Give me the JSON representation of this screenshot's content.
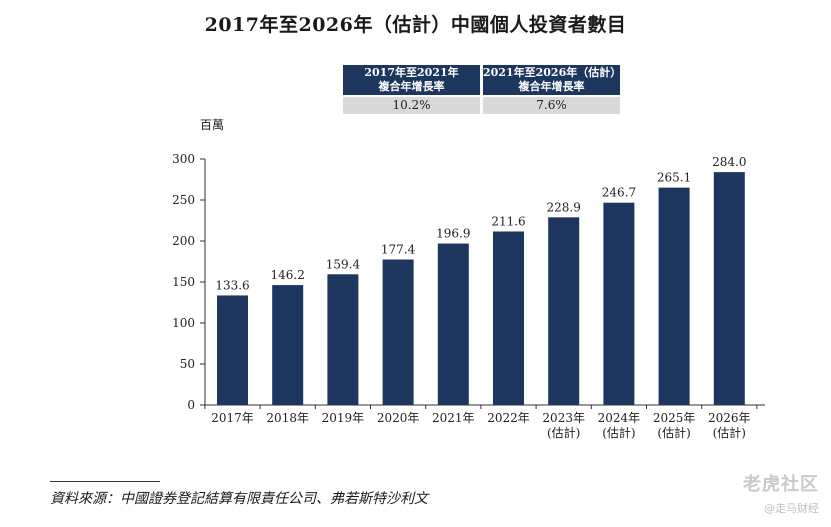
{
  "title": "2017年至2026年（估計）中國個人投資者數目",
  "cagr": [
    {
      "period": "2017年至2021年",
      "label": "複合年增長率",
      "value": "10.2%"
    },
    {
      "period": "2021年至2026年（估計）",
      "label": "複合年增長率",
      "value": "7.6%"
    }
  ],
  "source": "資料來源：中國證券登記結算有限責任公司、弗若斯特沙利文",
  "watermark": {
    "main": "老虎社区",
    "sub": "@走马财经"
  },
  "colors": {
    "bar": "#1c365e",
    "header_bg": "#1c365e",
    "value_bg": "#d9d9d9"
  },
  "chart_data": {
    "type": "bar",
    "title": "2017年至2026年（估計）中國個人投資者數目",
    "ylabel": "百萬",
    "xlabel": "",
    "ylim": [
      0,
      300
    ],
    "yticks": [
      0,
      50,
      100,
      150,
      200,
      250,
      300
    ],
    "grid": false,
    "categories": [
      [
        "2017年"
      ],
      [
        "2018年"
      ],
      [
        "2019年"
      ],
      [
        "2020年"
      ],
      [
        "2021年"
      ],
      [
        "2022年"
      ],
      [
        "2023年",
        "(估計)"
      ],
      [
        "2024年",
        "(估計)"
      ],
      [
        "2025年",
        "(估計)"
      ],
      [
        "2026年",
        "(估計)"
      ]
    ],
    "values": [
      133.6,
      146.2,
      159.4,
      177.4,
      196.9,
      211.6,
      228.9,
      246.7,
      265.1,
      284.0
    ],
    "value_labels": [
      "133.6",
      "146.2",
      "159.4",
      "177.4",
      "196.9",
      "211.6",
      "228.9",
      "246.7",
      "265.1",
      "284.0"
    ]
  }
}
